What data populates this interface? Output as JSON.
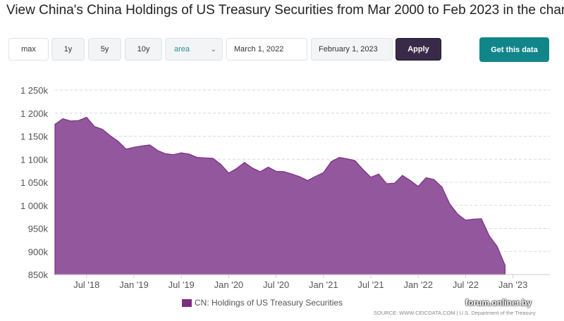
{
  "title": "View China's China Holdings of US Treasury Securities from Mar 2000 to Feb 2023 in the chart:",
  "controls": {
    "ranges": [
      "max",
      "1y",
      "5y",
      "10y"
    ],
    "chart_type": "area",
    "start_date": "March 1, 2022",
    "end_date": "February 1, 2023",
    "apply_label": "Apply",
    "get_data_label": "Get this data"
  },
  "colors": {
    "area_fill": "#93579e",
    "area_line": "#7a2e80",
    "apply_bg": "#3a2a4a",
    "get_data_bg": "#11868a"
  },
  "chart_data": {
    "type": "area",
    "xlabel": "",
    "ylabel": "",
    "ylim": [
      850000,
      1250000
    ],
    "y_ticks": [
      "1 250k",
      "1 200k",
      "1 150k",
      "1 100k",
      "1 050k",
      "1 000k",
      "950k",
      "900k",
      "850k"
    ],
    "x_ticks": [
      "Jul '18",
      "Jan '19",
      "Jul '19",
      "Jan '20",
      "Jul '20",
      "Jan '21",
      "Jul '21",
      "Jan '22",
      "Jul '22",
      "Jan '23"
    ],
    "series": [
      {
        "name": "CN: Holdings of US Treasury Securities",
        "x": [
          "2018-03",
          "2018-04",
          "2018-05",
          "2018-06",
          "2018-07",
          "2018-08",
          "2018-09",
          "2018-10",
          "2018-11",
          "2018-12",
          "2019-01",
          "2019-02",
          "2019-03",
          "2019-04",
          "2019-05",
          "2019-06",
          "2019-07",
          "2019-08",
          "2019-09",
          "2019-10",
          "2019-11",
          "2019-12",
          "2020-01",
          "2020-02",
          "2020-03",
          "2020-04",
          "2020-05",
          "2020-06",
          "2020-07",
          "2020-08",
          "2020-09",
          "2020-10",
          "2020-11",
          "2020-12",
          "2021-01",
          "2021-02",
          "2021-03",
          "2021-04",
          "2021-05",
          "2021-06",
          "2021-07",
          "2021-08",
          "2021-09",
          "2021-10",
          "2021-11",
          "2021-12",
          "2022-01",
          "2022-02",
          "2022-03",
          "2022-04",
          "2022-05",
          "2022-06",
          "2022-07",
          "2022-08",
          "2022-09",
          "2022-10",
          "2022-11",
          "2022-12"
        ],
        "values": [
          1176000,
          1188000,
          1183000,
          1184000,
          1191000,
          1171000,
          1165000,
          1151000,
          1139000,
          1122000,
          1126000,
          1129000,
          1131000,
          1119000,
          1112000,
          1110000,
          1114000,
          1111000,
          1104000,
          1103000,
          1102000,
          1089000,
          1070000,
          1080000,
          1093000,
          1081000,
          1073000,
          1083000,
          1074000,
          1073000,
          1068000,
          1062000,
          1054000,
          1063000,
          1071000,
          1095000,
          1104000,
          1101000,
          1097000,
          1078000,
          1061000,
          1068000,
          1047000,
          1048000,
          1065000,
          1054000,
          1041000,
          1060000,
          1056000,
          1040000,
          1003000,
          981000,
          968000,
          970000,
          971000,
          934000,
          911000,
          870000
        ]
      }
    ],
    "legend_position": "bottom-center",
    "grid": true
  },
  "footer": {
    "source": "SOURCE: WWW.CEICDATA.COM | U.S. Department of the Treasury",
    "watermark": "forum.onliner.by"
  }
}
